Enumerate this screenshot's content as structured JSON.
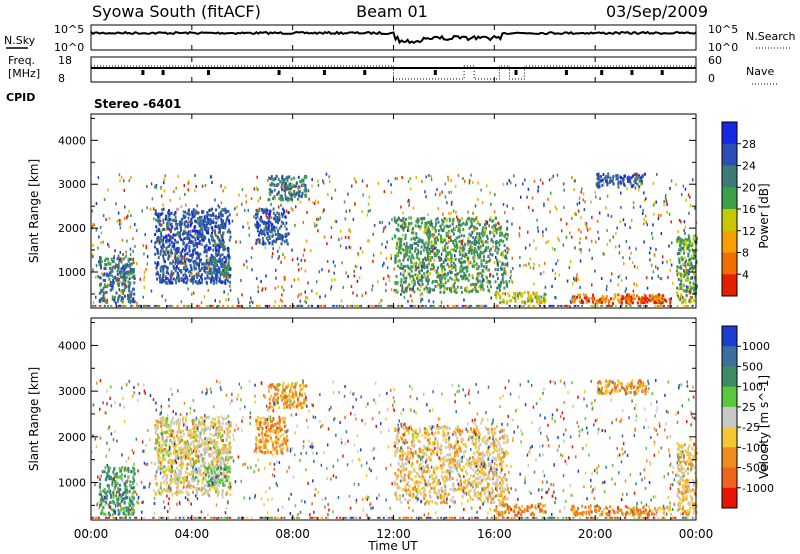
{
  "header": {
    "station": "Syowa South (fitACF)",
    "beam": "Beam 01",
    "date": "03/Sep/2009"
  },
  "noise_panel": {
    "left_label": "N.Sky",
    "right_label": "N.Search",
    "left_ticks": [
      "10^5",
      "10^0"
    ],
    "right_ticks": [
      "10^5",
      "10^0"
    ]
  },
  "freq_panel": {
    "left_label_1": "Freq.",
    "left_label_2": "[MHz]",
    "right_label": "Nave",
    "left_ticks": [
      "18",
      "8"
    ],
    "right_ticks": [
      "60",
      "0"
    ]
  },
  "cpid_label": "CPID",
  "mode_label": "Stereo -6401",
  "xaxis": {
    "label": "Time UT",
    "ticks": [
      "00:00",
      "04:00",
      "08:00",
      "12:00",
      "16:00",
      "20:00",
      "00:00"
    ]
  },
  "chart_data": [
    {
      "type": "heatmap",
      "title": "",
      "xlabel": "Time UT",
      "ylabel": "Slant Range [km]",
      "xlim": [
        0,
        24
      ],
      "ylim": [
        180,
        4600
      ],
      "yticks": [
        "1000",
        "2000",
        "3000",
        "4000"
      ],
      "colorbar": {
        "label": "Power [dB]",
        "ticks": [
          "4",
          "8",
          "12",
          "16",
          "20",
          "24",
          "28"
        ],
        "colors": [
          "#1428e6",
          "#2d4fb4",
          "#3c7a78",
          "#3ca04b",
          "#c8c800",
          "#f5a000",
          "#f06e00",
          "#e61e00"
        ]
      },
      "regions": [
        {
          "t": [
            0.3,
            1.7
          ],
          "r": [
            250,
            1300
          ],
          "level": 0.3
        },
        {
          "t": [
            2.5,
            5.5
          ],
          "r": [
            700,
            2400
          ],
          "level": 0.2
        },
        {
          "t": [
            4.5,
            5.5
          ],
          "r": [
            900,
            1300
          ],
          "level": 0.3
        },
        {
          "t": [
            6.5,
            7.8
          ],
          "r": [
            1600,
            2400
          ],
          "level": 0.2
        },
        {
          "t": [
            7.0,
            8.5
          ],
          "r": [
            2600,
            3150
          ],
          "level": 0.3
        },
        {
          "t": [
            12.0,
            16.5
          ],
          "r": [
            500,
            2200
          ],
          "level": 0.4
        },
        {
          "t": [
            16.0,
            18.0
          ],
          "r": [
            250,
            500
          ],
          "level": 0.55
        },
        {
          "t": [
            19.0,
            23.0
          ],
          "r": [
            250,
            450
          ],
          "level": 0.8
        },
        {
          "t": [
            21.0,
            22.8
          ],
          "r": [
            250,
            400
          ],
          "level": 0.97
        },
        {
          "t": [
            20.0,
            22.0
          ],
          "r": [
            2900,
            3200
          ],
          "level": 0.2
        },
        {
          "t": [
            23.2,
            24.0
          ],
          "r": [
            250,
            1800
          ],
          "level": 0.45
        }
      ]
    },
    {
      "type": "heatmap",
      "title": "",
      "xlabel": "Time UT",
      "ylabel": "Slant Range [km]",
      "xlim": [
        0,
        24
      ],
      "ylim": [
        180,
        4600
      ],
      "yticks": [
        "1000",
        "2000",
        "3000",
        "4000"
      ],
      "colorbar": {
        "label": "Velocity [m s^-1]",
        "ticks": [
          "1000",
          "500",
          "100",
          "25",
          "-25",
          "-100",
          "-500",
          "-1000"
        ],
        "colors": [
          "#1e3cd2",
          "#3c6ea0",
          "#3c8c64",
          "#5ac83c",
          "#c8c8c8",
          "#f5c832",
          "#f08c1e",
          "#f0641e",
          "#e61400"
        ]
      },
      "regions": [
        {
          "t": [
            0.3,
            1.7
          ],
          "r": [
            250,
            1300
          ],
          "level": 0.3
        },
        {
          "t": [
            2.5,
            5.5
          ],
          "r": [
            700,
            2400
          ],
          "level": 0.55
        },
        {
          "t": [
            4.5,
            5.5
          ],
          "r": [
            900,
            1300
          ],
          "level": 0.35
        },
        {
          "t": [
            6.5,
            7.8
          ],
          "r": [
            1600,
            2400
          ],
          "level": 0.7
        },
        {
          "t": [
            7.0,
            8.5
          ],
          "r": [
            2600,
            3150
          ],
          "level": 0.7
        },
        {
          "t": [
            12.0,
            16.5
          ],
          "r": [
            500,
            2200
          ],
          "level": 0.6
        },
        {
          "t": [
            16.0,
            18.0
          ],
          "r": [
            250,
            500
          ],
          "level": 0.72
        },
        {
          "t": [
            19.0,
            23.0
          ],
          "r": [
            250,
            450
          ],
          "level": 0.75
        },
        {
          "t": [
            20.0,
            22.0
          ],
          "r": [
            2900,
            3200
          ],
          "level": 0.72
        },
        {
          "t": [
            23.2,
            24.0
          ],
          "r": [
            250,
            1800
          ],
          "level": 0.6
        }
      ]
    }
  ]
}
